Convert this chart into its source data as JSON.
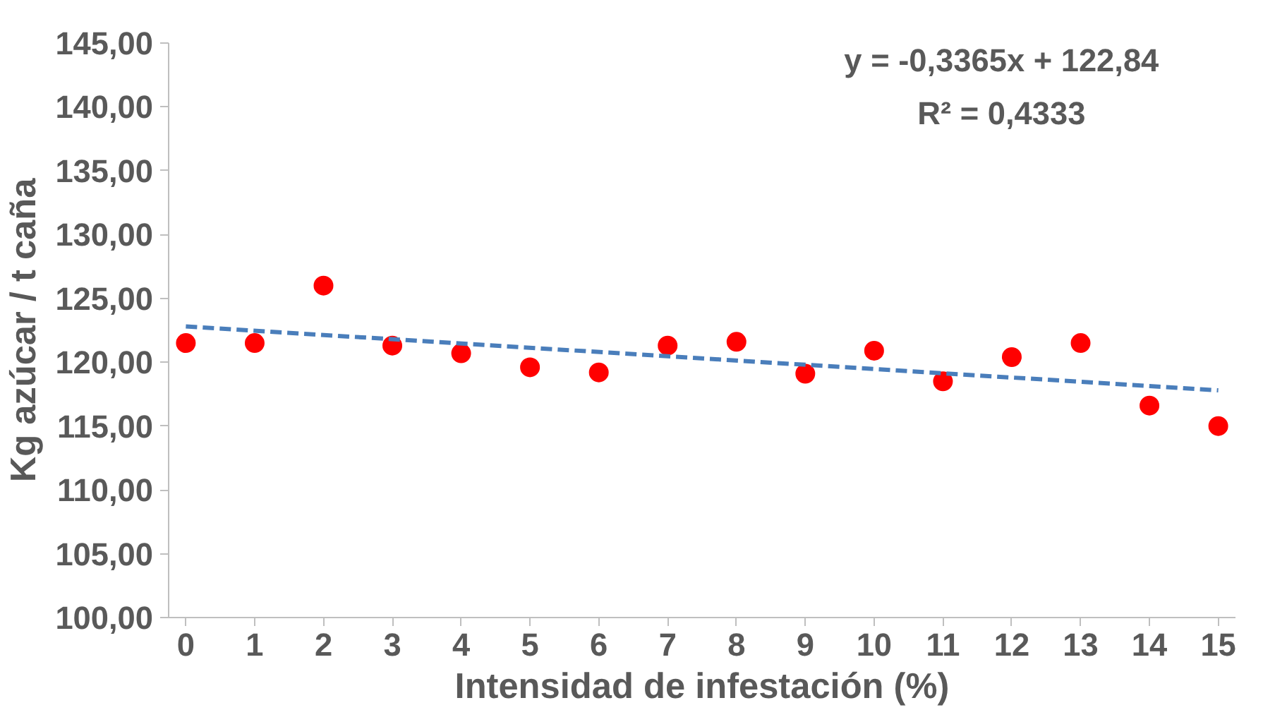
{
  "chart_data": {
    "type": "scatter",
    "xlabel": "Intensidad de infestación (%)",
    "ylabel": "Kg azúcar / t caña",
    "annotations": [
      "y = -0,3365x + 122,84",
      "R² = 0,4333"
    ],
    "marker": "circle",
    "grid": false,
    "x": [
      0,
      1,
      2,
      3,
      4,
      5,
      6,
      7,
      8,
      9,
      10,
      11,
      12,
      13,
      14,
      15
    ],
    "series": [
      {
        "color": "#ff0000",
        "values": [
          121.5,
          121.5,
          126.0,
          121.3,
          120.7,
          119.6,
          119.2,
          121.3,
          121.6,
          119.1,
          120.9,
          118.5,
          120.4,
          121.5,
          116.6,
          115.0
        ]
      },
      {
        "type": "line",
        "color": "#4a7ebb",
        "line_style": "dashed",
        "marker": "none",
        "x": [
          0,
          15
        ],
        "values": [
          122.8,
          117.8
        ]
      }
    ],
    "xlim": [
      -0.25,
      15.25
    ],
    "xticks": [
      0,
      1,
      2,
      3,
      4,
      5,
      6,
      7,
      8,
      9,
      10,
      11,
      12,
      13,
      14,
      15
    ],
    "ylim": [
      100,
      145
    ],
    "yticks": [
      {
        "value": 100,
        "label": "100,00"
      },
      {
        "value": 105,
        "label": "105,00"
      },
      {
        "value": 110,
        "label": "110,00"
      },
      {
        "value": 115,
        "label": "115,00"
      },
      {
        "value": 120,
        "label": "120,00"
      },
      {
        "value": 125,
        "label": "125,00"
      },
      {
        "value": 130,
        "label": "130,00"
      },
      {
        "value": 135,
        "label": "135,00"
      },
      {
        "value": 140,
        "label": "140,00"
      },
      {
        "value": 145,
        "label": "145,00"
      }
    ]
  }
}
